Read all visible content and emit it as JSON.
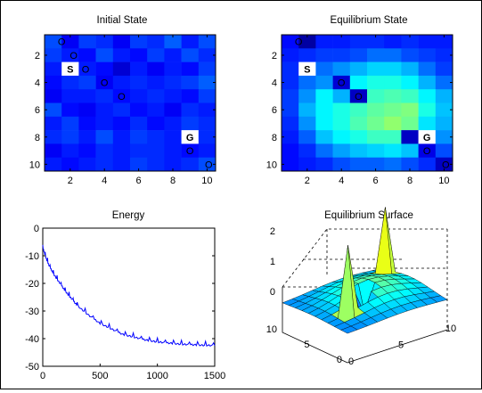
{
  "chart_data": [
    {
      "type": "heatmap",
      "title": "Initial State",
      "xticks": [
        2,
        4,
        6,
        8,
        10
      ],
      "yticks": [
        2,
        4,
        6,
        8,
        10
      ],
      "xlim": [
        0.5,
        10.5
      ],
      "ylim": [
        0.5,
        10.5
      ],
      "y_direction": "reverse",
      "colormap": "jet",
      "clim": [
        -1,
        2
      ],
      "values": [
        [
          -0.4,
          -0.65,
          -0.45,
          -0.5,
          -0.65,
          -0.45,
          -0.5,
          -0.35,
          -0.55,
          -0.4
        ],
        [
          -0.45,
          -0.55,
          -0.6,
          -0.4,
          -0.55,
          -0.6,
          -0.45,
          -0.55,
          -0.4,
          -0.5
        ],
        [
          -0.55,
          2.0,
          -0.55,
          -0.6,
          -0.75,
          -0.55,
          -0.65,
          -0.55,
          -0.6,
          -0.45
        ],
        [
          -0.6,
          -0.5,
          -0.45,
          -0.65,
          -0.55,
          -0.5,
          -0.55,
          -0.5,
          -0.45,
          -0.35
        ],
        [
          -0.65,
          -0.55,
          -0.55,
          -0.5,
          -0.6,
          -0.55,
          -0.5,
          -0.55,
          -0.6,
          -0.45
        ],
        [
          -0.4,
          -0.6,
          -0.65,
          -0.55,
          -0.5,
          -0.6,
          -0.55,
          -0.65,
          -0.5,
          -0.55
        ],
        [
          -0.55,
          -0.45,
          -0.6,
          -0.55,
          -0.6,
          -0.5,
          -0.6,
          -0.55,
          -0.45,
          -0.5
        ],
        [
          -0.5,
          -0.45,
          -0.55,
          -0.4,
          -0.55,
          -0.45,
          -0.5,
          -0.55,
          2.0,
          -0.5
        ],
        [
          -0.65,
          -0.55,
          -0.6,
          -0.5,
          -0.55,
          -0.5,
          -0.5,
          -0.55,
          -0.6,
          -0.55
        ],
        [
          -0.55,
          -0.6,
          -0.55,
          -0.5,
          -0.55,
          -0.45,
          -0.5,
          -0.55,
          -0.5,
          -0.4
        ]
      ],
      "markers": [
        {
          "text": "O",
          "row": 1,
          "col": 1.5
        },
        {
          "text": "O",
          "row": 2,
          "col": 2.2
        },
        {
          "text": "S",
          "row": 3,
          "col": 2
        },
        {
          "text": "O",
          "row": 3,
          "col": 2.9
        },
        {
          "text": "O",
          "row": 4,
          "col": 4
        },
        {
          "text": "O",
          "row": 5,
          "col": 5
        },
        {
          "text": "G",
          "row": 8,
          "col": 9
        },
        {
          "text": "O",
          "row": 9,
          "col": 9
        },
        {
          "text": "O",
          "row": 10,
          "col": 10.1
        }
      ]
    },
    {
      "type": "heatmap",
      "title": "Equilibrium State",
      "xticks": [
        2,
        4,
        6,
        8,
        10
      ],
      "yticks": [
        2,
        4,
        6,
        8,
        10
      ],
      "xlim": [
        0.5,
        10.5
      ],
      "ylim": [
        0.5,
        10.5
      ],
      "y_direction": "reverse",
      "colormap": "jet",
      "clim": [
        -1,
        2
      ],
      "values": [
        [
          -0.6,
          -0.9,
          -0.55,
          -0.55,
          -0.5,
          -0.5,
          -0.55,
          -0.5,
          -0.55,
          -0.55
        ],
        [
          -0.55,
          -0.5,
          -0.45,
          -0.45,
          -0.4,
          -0.3,
          -0.3,
          -0.4,
          -0.45,
          -0.5
        ],
        [
          -0.5,
          2.0,
          -0.3,
          -0.2,
          -0.1,
          0.0,
          0.0,
          -0.1,
          -0.3,
          -0.45
        ],
        [
          -0.5,
          -0.3,
          -0.2,
          -0.75,
          0.1,
          0.2,
          0.2,
          0.1,
          -0.1,
          -0.3
        ],
        [
          -0.45,
          -0.2,
          0.1,
          -0.1,
          -0.8,
          0.3,
          0.35,
          0.3,
          0.1,
          -0.1
        ],
        [
          -0.45,
          -0.1,
          0.1,
          0.2,
          0.3,
          0.4,
          0.45,
          0.5,
          0.2,
          -0.05
        ],
        [
          -0.5,
          -0.2,
          0.1,
          0.2,
          0.35,
          0.45,
          0.55,
          0.45,
          0.05,
          -0.1
        ],
        [
          -0.55,
          -0.35,
          -0.05,
          0.1,
          0.2,
          0.3,
          0.3,
          -0.8,
          2.0,
          -0.2
        ],
        [
          -0.6,
          -0.5,
          -0.3,
          -0.15,
          -0.05,
          0.0,
          0.05,
          -0.05,
          -0.7,
          -0.4
        ],
        [
          -0.6,
          -0.55,
          -0.5,
          -0.4,
          -0.35,
          -0.35,
          -0.3,
          -0.4,
          -0.5,
          -0.8
        ]
      ],
      "markers": [
        {
          "text": "O",
          "row": 1,
          "col": 1.5
        },
        {
          "text": "S",
          "row": 3,
          "col": 2
        },
        {
          "text": "O",
          "row": 4,
          "col": 4
        },
        {
          "text": "O",
          "row": 5,
          "col": 5
        },
        {
          "text": "G",
          "row": 8,
          "col": 9
        },
        {
          "text": "O",
          "row": 9,
          "col": 9
        },
        {
          "text": "O",
          "row": 10,
          "col": 10.1
        }
      ]
    },
    {
      "type": "line",
      "title": "Energy",
      "xlim": [
        0,
        1500
      ],
      "ylim": [
        -50,
        0
      ],
      "xticks": [
        0,
        500,
        1000,
        1500
      ],
      "yticks": [
        0,
        -10,
        -20,
        -30,
        -40,
        -50
      ],
      "color": "#0000ff",
      "x": [
        0,
        30,
        60,
        100,
        150,
        200,
        250,
        300,
        400,
        500,
        600,
        700,
        800,
        900,
        1000,
        1100,
        1200,
        1300,
        1400,
        1500
      ],
      "y": [
        -7,
        -11,
        -14,
        -17,
        -20,
        -23,
        -25.5,
        -28,
        -31.5,
        -34.5,
        -36.5,
        -38.5,
        -39.5,
        -40.5,
        -41.2,
        -41.6,
        -42,
        -42.2,
        -42.4,
        -42.5
      ]
    },
    {
      "type": "surface",
      "title": "Equilibrium Surface",
      "xticks": [
        0,
        5,
        10
      ],
      "yticks": [
        0,
        5,
        10
      ],
      "zticks": [
        0,
        1,
        2
      ],
      "xlim": [
        0,
        10
      ],
      "ylim": [
        0,
        10
      ],
      "zlim": [
        -1,
        2.3
      ],
      "colormap": "jet",
      "peaks": [
        {
          "x": 2,
          "y": 3,
          "z": 2
        },
        {
          "x": 9,
          "y": 8,
          "z": 2
        }
      ],
      "troughs": [
        {
          "x": 4,
          "y": 4,
          "z": -0.8
        },
        {
          "x": 5,
          "y": 5,
          "z": -0.8
        }
      ]
    }
  ]
}
